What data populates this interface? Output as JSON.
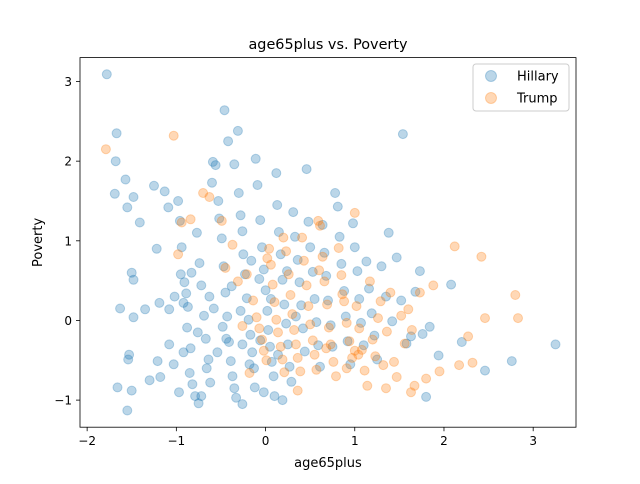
{
  "chart_data": {
    "type": "scatter",
    "title": "age65plus vs. Poverty",
    "xlabel": "age65plus",
    "ylabel": "Poverty",
    "xlim": [
      -2.08,
      3.48
    ],
    "ylim": [
      -1.34,
      3.3
    ],
    "xticks": [
      -2,
      -1,
      0,
      1,
      2,
      3
    ],
    "yticks": [
      -1,
      0,
      1,
      2,
      3
    ],
    "grid": false,
    "legend_position": "top-right",
    "series": [
      {
        "name": "Hillary",
        "color": "#1f77b4",
        "alpha": 0.3,
        "points": [
          [
            -1.78,
            3.09
          ],
          [
            -1.67,
            2.35
          ],
          [
            -1.68,
            2.0
          ],
          [
            -1.57,
            1.77
          ],
          [
            -1.69,
            1.59
          ],
          [
            -1.55,
            1.42
          ],
          [
            -1.48,
            1.55
          ],
          [
            -1.41,
            1.23
          ],
          [
            -1.5,
            0.6
          ],
          [
            -1.48,
            0.51
          ],
          [
            -1.63,
            0.15
          ],
          [
            -1.48,
            0.04
          ],
          [
            -1.53,
            -0.43
          ],
          [
            -1.54,
            -0.49
          ],
          [
            -1.66,
            -0.84
          ],
          [
            -1.55,
            -1.13
          ],
          [
            -1.5,
            -0.88
          ],
          [
            -1.35,
            0.14
          ],
          [
            -1.3,
            -0.75
          ],
          [
            -1.25,
            1.69
          ],
          [
            -1.22,
            0.9
          ],
          [
            -1.19,
            0.22
          ],
          [
            -1.21,
            -0.51
          ],
          [
            -1.18,
            -0.71
          ],
          [
            -1.13,
            1.62
          ],
          [
            -1.09,
            1.42
          ],
          [
            -1.08,
            0.14
          ],
          [
            -1.03,
            -0.55
          ],
          [
            -0.98,
            1.5
          ],
          [
            -0.95,
            0.58
          ],
          [
            -0.92,
            0.22
          ],
          [
            -0.88,
            -0.09
          ],
          [
            -0.85,
            -0.66
          ],
          [
            -0.96,
            1.25
          ],
          [
            -0.94,
            0.92
          ],
          [
            -0.91,
            0.48
          ],
          [
            -0.89,
            0.34
          ],
          [
            -0.87,
            0.17
          ],
          [
            -0.84,
            -0.35
          ],
          [
            -0.82,
            -0.8
          ],
          [
            -0.79,
            -0.95
          ],
          [
            -0.77,
            1.1
          ],
          [
            -0.74,
            0.72
          ],
          [
            -0.72,
            0.44
          ],
          [
            -0.69,
            0.06
          ],
          [
            -0.67,
            -0.23
          ],
          [
            -0.64,
            -0.49
          ],
          [
            -0.62,
            -0.78
          ],
          [
            -0.6,
            1.73
          ],
          [
            -0.59,
            1.99
          ],
          [
            -0.56,
            1.95
          ],
          [
            -0.53,
            1.5
          ],
          [
            -0.52,
            1.28
          ],
          [
            -0.49,
            1.03
          ],
          [
            -0.47,
            0.68
          ],
          [
            -0.45,
            0.35
          ],
          [
            -0.43,
            0.05
          ],
          [
            -0.41,
            -0.27
          ],
          [
            -0.39,
            -0.51
          ],
          [
            -0.37,
            -0.7
          ],
          [
            -0.35,
            -0.85
          ],
          [
            -0.46,
            2.64
          ],
          [
            -0.42,
            2.25
          ],
          [
            -0.31,
            2.38
          ],
          [
            -0.35,
            1.96
          ],
          [
            -0.3,
            1.6
          ],
          [
            -0.28,
            1.32
          ],
          [
            -0.26,
            1.12
          ],
          [
            -0.25,
            0.83
          ],
          [
            -0.23,
            0.58
          ],
          [
            -0.21,
            0.28
          ],
          [
            -0.19,
            0.01
          ],
          [
            -0.17,
            -0.18
          ],
          [
            -0.15,
            -0.4
          ],
          [
            -0.13,
            -0.6
          ],
          [
            -0.12,
            -0.84
          ],
          [
            -0.11,
            2.03
          ],
          [
            -0.09,
            1.7
          ],
          [
            -0.06,
            1.26
          ],
          [
            -0.04,
            0.92
          ],
          [
            -0.02,
            0.64
          ],
          [
            0.0,
            0.38
          ],
          [
            0.02,
            0.12
          ],
          [
            0.03,
            -0.12
          ],
          [
            0.05,
            -0.33
          ],
          [
            0.07,
            -0.52
          ],
          [
            0.09,
            -0.7
          ],
          [
            0.12,
            1.85
          ],
          [
            0.13,
            1.45
          ],
          [
            0.15,
            1.11
          ],
          [
            0.17,
            0.83
          ],
          [
            0.19,
            0.51
          ],
          [
            0.21,
            0.2
          ],
          [
            0.23,
            -0.04
          ],
          [
            0.25,
            -0.3
          ],
          [
            0.27,
            -0.58
          ],
          [
            0.29,
            -0.77
          ],
          [
            0.31,
            1.36
          ],
          [
            0.33,
            1.05
          ],
          [
            0.36,
            0.76
          ],
          [
            0.38,
            0.48
          ],
          [
            0.4,
            0.19
          ],
          [
            0.42,
            -0.1
          ],
          [
            0.44,
            -0.39
          ],
          [
            0.46,
            1.9
          ],
          [
            0.48,
            1.24
          ],
          [
            0.5,
            0.92
          ],
          [
            0.53,
            0.61
          ],
          [
            0.55,
            0.27
          ],
          [
            0.57,
            -0.02
          ],
          [
            0.59,
            -0.31
          ],
          [
            0.61,
            -0.58
          ],
          [
            0.64,
            1.2
          ],
          [
            0.66,
            0.85
          ],
          [
            0.68,
            0.56
          ],
          [
            0.7,
            0.25
          ],
          [
            0.73,
            -0.06
          ],
          [
            0.75,
            -0.33
          ],
          [
            0.78,
            1.6
          ],
          [
            0.81,
            1.43
          ],
          [
            0.83,
            1.05
          ],
          [
            0.85,
            0.71
          ],
          [
            0.88,
            0.37
          ],
          [
            0.9,
            0.05
          ],
          [
            0.92,
            -0.26
          ],
          [
            0.95,
            -0.55
          ],
          [
            0.98,
            1.22
          ],
          [
            1.0,
            0.92
          ],
          [
            1.03,
            0.62
          ],
          [
            1.05,
            0.27
          ],
          [
            1.07,
            -0.03
          ],
          [
            1.1,
            -0.31
          ],
          [
            1.13,
            0.74
          ],
          [
            1.16,
            0.4
          ],
          [
            1.19,
            0.09
          ],
          [
            1.22,
            -0.19
          ],
          [
            1.25,
            -0.49
          ],
          [
            1.3,
            0.68
          ],
          [
            1.35,
            0.3
          ],
          [
            1.38,
            1.1
          ],
          [
            1.42,
            -0.01
          ],
          [
            1.47,
            0.79
          ],
          [
            1.52,
            0.25
          ],
          [
            1.54,
            2.34
          ],
          [
            1.58,
            -0.29
          ],
          [
            1.63,
            -0.2
          ],
          [
            1.68,
            0.36
          ],
          [
            1.73,
            0.62
          ],
          [
            1.76,
            -0.17
          ],
          [
            1.8,
            -0.96
          ],
          [
            1.84,
            -0.08
          ],
          [
            1.94,
            -0.44
          ],
          [
            2.08,
            0.45
          ],
          [
            2.2,
            -0.27
          ],
          [
            2.46,
            -0.63
          ],
          [
            2.76,
            -0.51
          ],
          [
            3.25,
            -0.3
          ],
          [
            -0.76,
            -0.15
          ],
          [
            -0.58,
            0.15
          ],
          [
            -0.38,
            0.43
          ],
          [
            -0.18,
            -0.55
          ],
          [
            0.06,
            0.27
          ],
          [
            0.24,
            0.62
          ],
          [
            -0.66,
            -0.6
          ],
          [
            -0.48,
            -0.08
          ],
          [
            -0.28,
            0.12
          ],
          [
            -0.07,
            0.52
          ],
          [
            -0.92,
            -0.4
          ],
          [
            -0.72,
            -0.95
          ],
          [
            -0.54,
            -0.4
          ],
          [
            -0.33,
            -0.97
          ],
          [
            -0.16,
            0.75
          ],
          [
            0.1,
            -0.95
          ],
          [
            -1.02,
            0.3
          ],
          [
            -0.83,
            0.6
          ],
          [
            -0.63,
            0.3
          ],
          [
            -0.44,
            -0.23
          ],
          [
            -0.26,
            -0.3
          ],
          [
            -0.06,
            -0.25
          ],
          [
            0.14,
            -0.43
          ],
          [
            0.34,
            0.05
          ],
          [
            -1.08,
            -0.3
          ],
          [
            -0.97,
            -0.9
          ],
          [
            -0.75,
            -1.04
          ],
          [
            -0.26,
            -1.05
          ],
          [
            -0.02,
            -0.9
          ],
          [
            0.19,
            -1.0
          ]
        ]
      },
      {
        "name": "Trump",
        "color": "#ff7f0e",
        "alpha": 0.3,
        "points": [
          [
            -1.79,
            2.15
          ],
          [
            -1.03,
            2.32
          ],
          [
            -0.98,
            0.83
          ],
          [
            -0.94,
            1.23
          ],
          [
            -0.84,
            1.27
          ],
          [
            -0.7,
            1.6
          ],
          [
            -0.63,
            1.55
          ],
          [
            -0.49,
            1.25
          ],
          [
            -0.45,
            0.66
          ],
          [
            -0.37,
            0.95
          ],
          [
            -0.21,
            0.58
          ],
          [
            -0.14,
            0.25
          ],
          [
            -0.1,
            0.04
          ],
          [
            -0.07,
            -0.1
          ],
          [
            -0.04,
            -0.24
          ],
          [
            -0.02,
            -0.38
          ],
          [
            0.01,
            -0.5
          ],
          [
            0.04,
            0.9
          ],
          [
            0.06,
            0.7
          ],
          [
            0.08,
            0.45
          ],
          [
            0.1,
            0.23
          ],
          [
            0.12,
            0.01
          ],
          [
            0.14,
            -0.15
          ],
          [
            0.17,
            -0.33
          ],
          [
            0.19,
            -0.49
          ],
          [
            0.21,
            -0.65
          ],
          [
            0.23,
            0.87
          ],
          [
            0.26,
            0.58
          ],
          [
            0.28,
            0.32
          ],
          [
            0.3,
            0.08
          ],
          [
            0.32,
            -0.12
          ],
          [
            0.34,
            -0.3
          ],
          [
            0.36,
            -0.47
          ],
          [
            0.39,
            -0.64
          ],
          [
            0.41,
            1.04
          ],
          [
            0.43,
            0.75
          ],
          [
            0.46,
            0.44
          ],
          [
            0.48,
            0.18
          ],
          [
            0.5,
            -0.05
          ],
          [
            0.53,
            -0.25
          ],
          [
            0.55,
            -0.43
          ],
          [
            0.57,
            -0.62
          ],
          [
            0.59,
            1.25
          ],
          [
            0.61,
            1.19
          ],
          [
            0.64,
            0.8
          ],
          [
            0.66,
            0.49
          ],
          [
            0.69,
            0.2
          ],
          [
            0.71,
            -0.09
          ],
          [
            0.73,
            -0.3
          ],
          [
            0.76,
            -0.52
          ],
          [
            0.79,
            -0.7
          ],
          [
            0.82,
            0.91
          ],
          [
            0.85,
            0.57
          ],
          [
            0.88,
            0.24
          ],
          [
            0.91,
            -0.03
          ],
          [
            0.94,
            -0.26
          ],
          [
            0.97,
            -0.47
          ],
          [
            1.0,
            1.35
          ],
          [
            1.02,
            0.18
          ],
          [
            1.05,
            -0.1
          ],
          [
            1.08,
            -0.37
          ],
          [
            1.11,
            -0.63
          ],
          [
            1.14,
            -0.82
          ],
          [
            1.17,
            0.49
          ],
          [
            1.2,
            -0.24
          ],
          [
            1.23,
            -0.45
          ],
          [
            1.26,
            0.03
          ],
          [
            1.29,
            0.24
          ],
          [
            1.32,
            -0.56
          ],
          [
            1.36,
            -0.14
          ],
          [
            1.4,
            0.35
          ],
          [
            1.44,
            -0.52
          ],
          [
            1.47,
            -0.71
          ],
          [
            1.52,
            0.06
          ],
          [
            1.56,
            -0.29
          ],
          [
            1.6,
            0.14
          ],
          [
            1.64,
            -0.12
          ],
          [
            1.67,
            -0.82
          ],
          [
            1.73,
            0.35
          ],
          [
            1.8,
            -0.73
          ],
          [
            1.88,
            0.44
          ],
          [
            1.95,
            -0.64
          ],
          [
            2.12,
            0.93
          ],
          [
            2.17,
            -0.56
          ],
          [
            2.27,
            -0.2
          ],
          [
            2.32,
            -0.53
          ],
          [
            2.42,
            0.8
          ],
          [
            2.46,
            0.03
          ],
          [
            2.8,
            0.32
          ],
          [
            2.83,
            0.03
          ],
          [
            1.63,
            -0.9
          ],
          [
            1.35,
            -0.85
          ],
          [
            1.0,
            -0.38
          ],
          [
            0.91,
            -0.6
          ],
          [
            -0.26,
            -0.07
          ],
          [
            -0.18,
            -0.66
          ],
          [
            0.02,
            0.78
          ],
          [
            0.36,
            -0.88
          ],
          [
            0.68,
            -0.35
          ],
          [
            1.04,
            -0.43
          ],
          [
            0.6,
            0.63
          ],
          [
            0.2,
            1.04
          ],
          [
            -0.31,
            0.49
          ],
          [
            0.86,
            0.33
          ]
        ]
      }
    ]
  }
}
